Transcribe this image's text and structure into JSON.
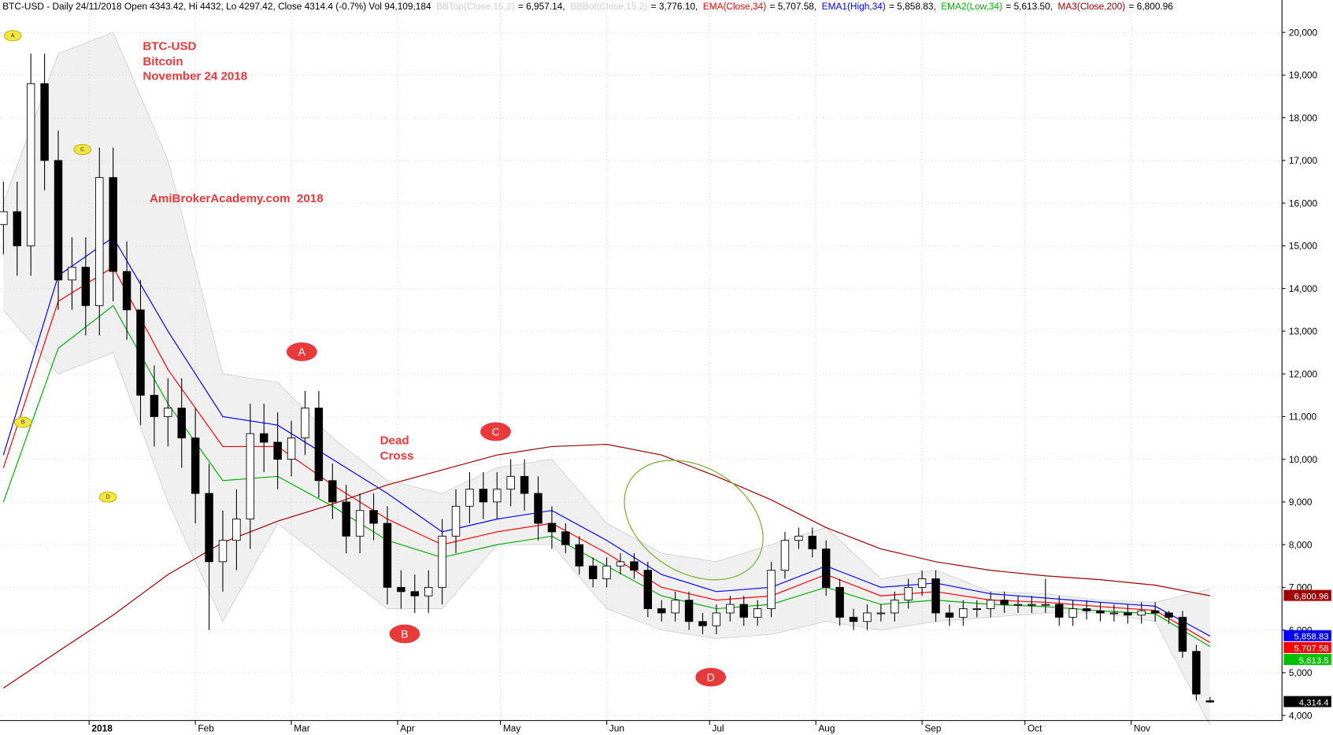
{
  "chart_data": {
    "type": "candlestick",
    "header": "BTC-USD - Daily 24/11/2018 Open 4343.42, Hi 4432, Lo 4297.42, Close 4314.4 (-0.7%) Vol 94,109,184",
    "xlim": [
      -1,
      373
    ],
    "xticks": [
      {
        "value": 25,
        "label": "2018"
      },
      {
        "value": 56,
        "label": "Feb"
      },
      {
        "value": 84,
        "label": "Mar"
      },
      {
        "value": 115,
        "label": "Apr"
      },
      {
        "value": 145,
        "label": "May"
      },
      {
        "value": 176,
        "label": "Jun"
      },
      {
        "value": 206,
        "label": "Jul"
      },
      {
        "value": 237,
        "label": "Aug"
      },
      {
        "value": 268,
        "label": "Sep"
      },
      {
        "value": 298,
        "label": "Oct"
      },
      {
        "value": 329,
        "label": "Nov"
      }
    ],
    "ylim": [
      3880,
      20460
    ],
    "yticks": [
      {
        "value": 4000,
        "label": "4,000"
      },
      {
        "value": 5000,
        "label": "5,000"
      },
      {
        "value": 6000,
        "label": "6,000"
      },
      {
        "value": 7000,
        "label": "7,000"
      },
      {
        "value": 8000,
        "label": "8,000"
      },
      {
        "value": 9000,
        "label": "9,000"
      },
      {
        "value": 10000,
        "label": "10,000"
      },
      {
        "value": 11000,
        "label": "11,000"
      },
      {
        "value": 12000,
        "label": "12,000"
      },
      {
        "value": 13000,
        "label": "13,000"
      },
      {
        "value": 14000,
        "label": "14,000"
      },
      {
        "value": 15000,
        "label": "15,000"
      },
      {
        "value": 16000,
        "label": "16,000"
      },
      {
        "value": 17000,
        "label": "17,000"
      },
      {
        "value": 18000,
        "label": "18,000"
      },
      {
        "value": 19000,
        "label": "19,000"
      },
      {
        "value": 20000,
        "label": "20,000"
      }
    ],
    "grid": true,
    "up_color": "#ffffff",
    "down_color": "#000000",
    "x": [
      0,
      4,
      8,
      12,
      16,
      20,
      24,
      28,
      32,
      36,
      40,
      44,
      48,
      52,
      56,
      60,
      64,
      68,
      72,
      76,
      80,
      84,
      88,
      92,
      96,
      100,
      104,
      108,
      112,
      116,
      120,
      124,
      128,
      132,
      136,
      140,
      144,
      148,
      152,
      156,
      160,
      164,
      168,
      172,
      176,
      180,
      184,
      188,
      192,
      196,
      200,
      204,
      208,
      212,
      216,
      220,
      224,
      228,
      232,
      236,
      240,
      244,
      248,
      252,
      256,
      260,
      264,
      268,
      272,
      276,
      280,
      284,
      288,
      292,
      296,
      300,
      304,
      308,
      312,
      316,
      320,
      324,
      328,
      332,
      336,
      340,
      344,
      348,
      352
    ],
    "open": [
      15500,
      15800,
      15000,
      18800,
      17000,
      14200,
      14500,
      13600,
      16600,
      14400,
      13500,
      11500,
      11000,
      11200,
      10500,
      9200,
      7600,
      8100,
      8600,
      10600,
      10400,
      10000,
      10500,
      11200,
      9500,
      9000,
      8200,
      8800,
      8500,
      7000,
      6900,
      6800,
      7000,
      8200,
      8900,
      9300,
      9000,
      9300,
      9600,
      9200,
      8500,
      8300,
      8000,
      7500,
      7200,
      7500,
      7600,
      7400,
      6500,
      6400,
      6700,
      6200,
      6100,
      6400,
      6600,
      6300,
      6500,
      7400,
      8100,
      8200,
      7900,
      7000,
      6300,
      6200,
      6400,
      6400,
      6700,
      7000,
      7200,
      6400,
      6300,
      6500,
      6500,
      6700,
      6600,
      6600,
      6600,
      6600,
      6300,
      6500,
      6450,
      6400,
      6400,
      6350,
      6450,
      6400,
      6300,
      5500,
      4343.42
    ],
    "high": [
      16500,
      16500,
      19500,
      19500,
      17700,
      15200,
      15200,
      17300,
      17300,
      15100,
      14200,
      12200,
      11900,
      11900,
      11200,
      9900,
      8800,
      9300,
      11300,
      11300,
      11100,
      10900,
      11600,
      11600,
      9900,
      9400,
      9200,
      9200,
      8900,
      7400,
      7300,
      7400,
      8600,
      9300,
      9700,
      9700,
      9700,
      10000,
      10000,
      9600,
      8900,
      8500,
      8200,
      7700,
      7700,
      7800,
      7800,
      7600,
      6700,
      6900,
      6900,
      6400,
      6600,
      6800,
      6800,
      6700,
      7600,
      8300,
      8400,
      8400,
      8100,
      7200,
      6500,
      6600,
      6600,
      6900,
      7200,
      7400,
      7400,
      6600,
      6700,
      6700,
      6900,
      6900,
      6800,
      6800,
      7200,
      6800,
      6700,
      6700,
      6650,
      6600,
      6600,
      6650,
      6650,
      6450,
      6450,
      5650,
      4432
    ],
    "low": [
      14800,
      14300,
      14300,
      16300,
      13500,
      13500,
      12900,
      12900,
      13700,
      12800,
      10800,
      10300,
      10300,
      9800,
      8500,
      6000,
      6900,
      7400,
      7900,
      9700,
      9300,
      9600,
      10100,
      9100,
      8600,
      7800,
      7800,
      8100,
      6600,
      6500,
      6400,
      6400,
      6600,
      7800,
      8500,
      8600,
      8600,
      8900,
      8800,
      8100,
      7900,
      7800,
      7300,
      7000,
      7000,
      7300,
      7200,
      6300,
      6200,
      6200,
      6000,
      5900,
      5900,
      6200,
      6100,
      6100,
      6300,
      7200,
      7900,
      7700,
      6800,
      6100,
      6000,
      6000,
      6200,
      6200,
      6500,
      6800,
      6200,
      6100,
      6100,
      6300,
      6300,
      6400,
      6400,
      6400,
      6400,
      6100,
      6100,
      6250,
      6200,
      6200,
      6150,
      6150,
      6200,
      6150,
      5350,
      4350,
      4297.42
    ],
    "close": [
      15800,
      15000,
      18800,
      17000,
      14200,
      14500,
      13600,
      16600,
      14400,
      13500,
      11500,
      11000,
      11200,
      10500,
      9200,
      7600,
      8100,
      8600,
      10600,
      10400,
      10000,
      10500,
      11200,
      9500,
      9000,
      8200,
      8800,
      8500,
      7000,
      6900,
      6800,
      7000,
      8200,
      8900,
      9300,
      9000,
      9300,
      9600,
      9200,
      8500,
      8300,
      8000,
      7500,
      7200,
      7500,
      7600,
      7400,
      6500,
      6400,
      6700,
      6200,
      6100,
      6400,
      6600,
      6300,
      6500,
      7400,
      8100,
      8200,
      7900,
      7000,
      6300,
      6200,
      6400,
      6400,
      6700,
      7000,
      7200,
      6400,
      6300,
      6500,
      6500,
      6700,
      6600,
      6600,
      6600,
      6600,
      6300,
      6500,
      6450,
      6400,
      6400,
      6350,
      6450,
      6400,
      6300,
      5500,
      4500,
      4314.4
    ],
    "close_label": "4,314.4",
    "close_label_color": "#000000",
    "overlay_x": [
      0,
      16,
      32,
      48,
      64,
      80,
      96,
      112,
      128,
      144,
      160,
      176,
      192,
      208,
      224,
      240,
      256,
      272,
      288,
      304,
      320,
      336,
      352
    ],
    "overlays": [
      {
        "name": "BBTop(Close,15,2)",
        "legend_text": "= 6,957.14,",
        "kind": "band-top",
        "color": "#cfcfcf",
        "values": [
          16000,
          19500,
          20000,
          17000,
          12000,
          11800,
          10500,
          9500,
          9200,
          9800,
          10000,
          8500,
          7800,
          7600,
          8000,
          8400,
          7200,
          7400,
          6900,
          6850,
          6700,
          6650,
          6957.14
        ]
      },
      {
        "name": "BBBot(Close,15,2)",
        "legend_text": "= 3,776.10,",
        "kind": "band-bottom",
        "color": "#cfcfcf",
        "values": [
          13500,
          12000,
          12500,
          9000,
          6200,
          8500,
          7500,
          6500,
          6500,
          8000,
          8000,
          6500,
          6000,
          5800,
          5900,
          6200,
          6000,
          6200,
          6300,
          6400,
          6400,
          6200,
          3776.1
        ]
      },
      {
        "name": "EMA(Close,34)",
        "legend_text": "= 5,707.58,",
        "kind": "line",
        "color": "#ff0000",
        "last_label": "5,707.58",
        "label_color": "#ff0000",
        "values": [
          9800,
          13700,
          14500,
          12100,
          10300,
          10300,
          9400,
          8600,
          8000,
          8300,
          8500,
          7800,
          7000,
          6700,
          6800,
          7300,
          6800,
          6900,
          6700,
          6650,
          6550,
          6460,
          5707.58
        ]
      },
      {
        "name": "EMA1(High,34)",
        "legend_text": "= 5,858.83,",
        "kind": "line",
        "color": "#0000ff",
        "last_label": "5,858.83",
        "label_color": "#0000ff",
        "values": [
          10100,
          14300,
          15200,
          13000,
          11000,
          10800,
          10000,
          9200,
          8300,
          8600,
          8800,
          8100,
          7300,
          6900,
          7000,
          7500,
          7000,
          7100,
          6850,
          6750,
          6650,
          6560,
          5858.83
        ]
      },
      {
        "name": "EMA2(Low,34)",
        "legend_text": "= 5,613.50,",
        "kind": "line",
        "color": "#00b000",
        "last_label": "5,613.5",
        "label_color": "#00c000",
        "values": [
          9000,
          12600,
          13600,
          11300,
          9500,
          9600,
          8900,
          8100,
          7700,
          8000,
          8200,
          7500,
          6800,
          6500,
          6600,
          7000,
          6600,
          6700,
          6600,
          6550,
          6450,
          6380,
          5613.5
        ]
      },
      {
        "name": "MA3(Close,200)",
        "legend_text": "= 6,800.96",
        "kind": "line",
        "color": "#a00000",
        "last_label": "6,800.96",
        "label_color": "#a00000",
        "values": [
          4640,
          5500,
          6350,
          7300,
          8050,
          8550,
          8950,
          9400,
          9750,
          10100,
          10300,
          10350,
          10100,
          9600,
          9050,
          8400,
          7900,
          7600,
          7400,
          7270,
          7180,
          7050,
          6800.96
        ]
      }
    ],
    "annotations": {
      "title_lines": [
        "BTC-USD",
        "Bitcoin",
        "November 24 2018"
      ],
      "watermark": "AmiBrokerAcademy.com  2018",
      "dead_cross": [
        "Dead",
        "Cross"
      ],
      "ovals": [
        "A",
        "B",
        "C",
        "D"
      ],
      "tags": [
        "A",
        "C",
        "B",
        "D"
      ]
    }
  }
}
